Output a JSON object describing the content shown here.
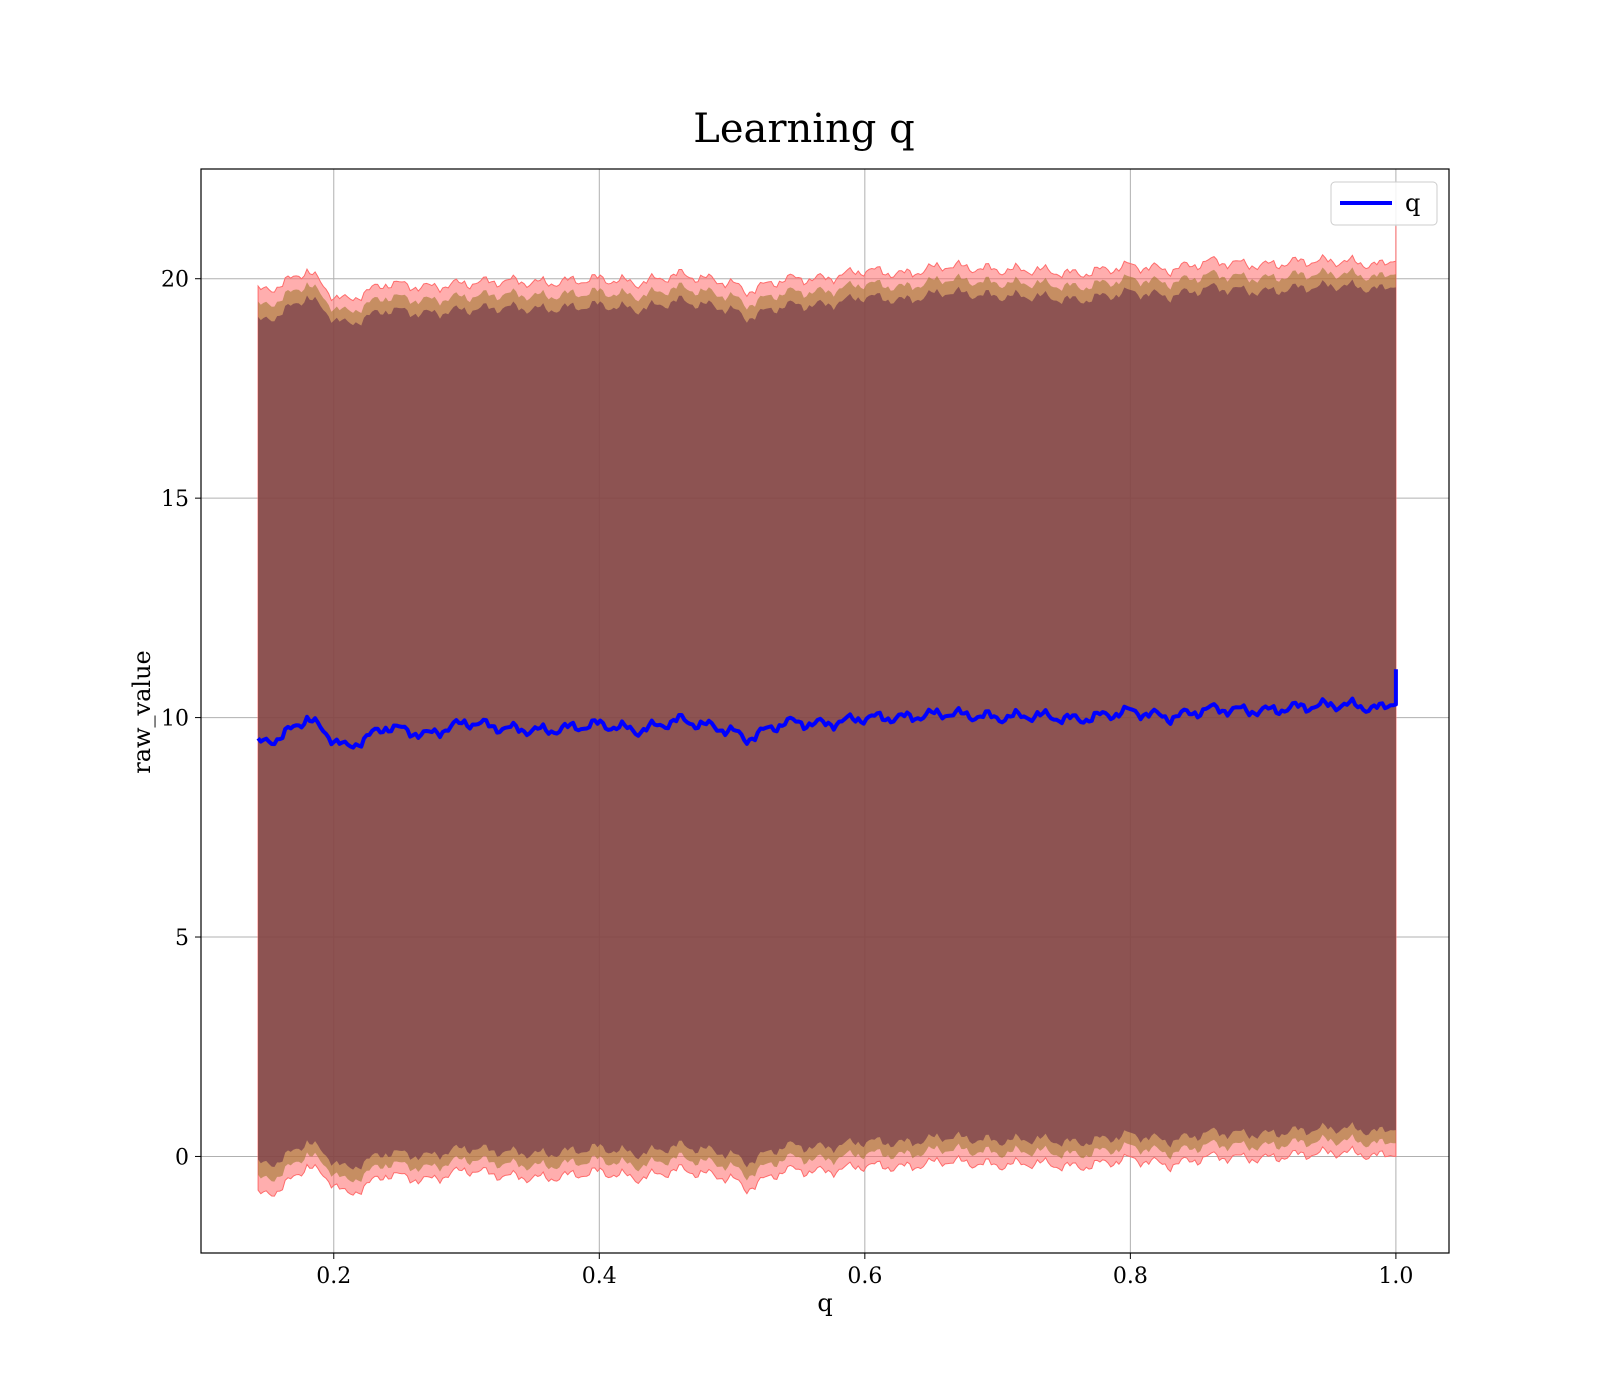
{
  "chart_data": {
    "type": "line",
    "title": "Learning q",
    "xlabel": "q",
    "ylabel": "raw_value",
    "xlim": [
      0.1,
      1.04
    ],
    "ylim": [
      -2.2,
      22.5
    ],
    "xticks": [
      0.2,
      0.4,
      0.6,
      0.8,
      1.0
    ],
    "xtick_labels": [
      "0.2",
      "0.4",
      "0.6",
      "0.8",
      "1.0"
    ],
    "yticks": [
      0,
      5,
      10,
      15,
      20
    ],
    "ytick_labels": [
      "0",
      "5",
      "10",
      "15",
      "20"
    ],
    "grid": true,
    "legend": {
      "placement": "top-right",
      "entries": [
        "q"
      ]
    },
    "colors": {
      "line": "#0000ff",
      "band_outer": "#ff6b6b",
      "band_mid": "#a0782e",
      "band_inner": "#6b2e48",
      "grid": "#b0b0b0"
    },
    "series": [
      {
        "name": "q",
        "x": [
          0.143,
          0.16,
          0.18,
          0.2,
          0.21,
          0.24,
          0.27,
          0.3,
          0.33,
          0.36,
          0.4,
          0.43,
          0.46,
          0.5,
          0.51,
          0.54,
          0.57,
          0.6,
          0.63,
          0.66,
          0.7,
          0.73,
          0.76,
          0.8,
          0.83,
          0.86,
          0.9,
          0.93,
          0.96,
          0.99,
          1.0,
          1.0
        ],
        "y": [
          9.4,
          9.55,
          10.0,
          9.5,
          9.3,
          9.8,
          9.6,
          9.9,
          9.75,
          9.7,
          9.85,
          9.7,
          9.95,
          9.7,
          9.5,
          9.9,
          9.85,
          10.0,
          10.0,
          10.1,
          10.0,
          10.05,
          9.95,
          10.15,
          10.0,
          10.2,
          10.15,
          10.25,
          10.3,
          10.2,
          10.4,
          11.1
        ],
        "outer_upper": [
          19.7,
          19.85,
          20.2,
          19.6,
          19.5,
          19.9,
          19.8,
          19.9,
          19.95,
          19.9,
          20.0,
          19.9,
          20.1,
          19.9,
          19.7,
          20.0,
          20.0,
          20.2,
          20.1,
          20.3,
          20.2,
          20.2,
          20.1,
          20.3,
          20.2,
          20.4,
          20.3,
          20.4,
          20.4,
          20.3,
          20.5,
          21.2
        ],
        "outer_lower": [
          -0.9,
          -0.75,
          -0.2,
          -0.6,
          -0.9,
          -0.4,
          -0.55,
          -0.3,
          -0.45,
          -0.5,
          -0.35,
          -0.5,
          -0.3,
          -0.5,
          -0.75,
          -0.3,
          -0.35,
          -0.2,
          -0.25,
          -0.1,
          -0.2,
          -0.15,
          -0.25,
          -0.05,
          -0.2,
          0.0,
          -0.05,
          0.05,
          0.1,
          0.0,
          0.1,
          0.1
        ],
        "inner_upper": [
          19.0,
          19.2,
          19.6,
          19.1,
          18.95,
          19.3,
          19.2,
          19.3,
          19.35,
          19.3,
          19.4,
          19.3,
          19.5,
          19.3,
          19.1,
          19.4,
          19.4,
          19.6,
          19.5,
          19.7,
          19.6,
          19.6,
          19.5,
          19.7,
          19.6,
          19.8,
          19.7,
          19.8,
          19.85,
          19.75,
          19.9,
          20.5
        ],
        "inner_lower": [
          -0.2,
          -0.1,
          0.35,
          -0.1,
          -0.3,
          0.1,
          0.0,
          0.2,
          0.1,
          0.05,
          0.2,
          0.05,
          0.25,
          0.05,
          -0.15,
          0.25,
          0.2,
          0.35,
          0.3,
          0.45,
          0.35,
          0.4,
          0.3,
          0.5,
          0.35,
          0.55,
          0.5,
          0.6,
          0.65,
          0.55,
          0.7,
          0.8
        ]
      }
    ]
  }
}
